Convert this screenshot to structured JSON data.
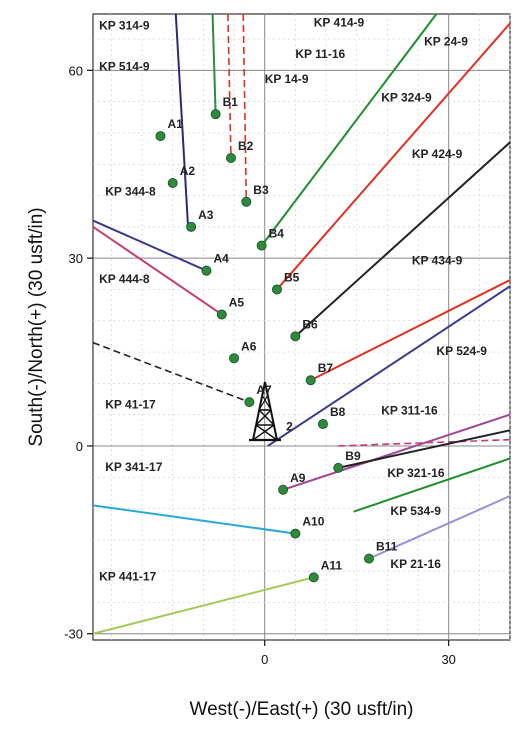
{
  "chart_data": {
    "type": "scatter",
    "title": "",
    "xlabel": "West(-)/East(+) (30 usft/in)",
    "ylabel": "South(-)/North(+) (30 usft/in)",
    "xlim": [
      -28,
      40
    ],
    "ylim": [
      -31,
      69
    ],
    "x_ticks": [
      0,
      30
    ],
    "y_ticks": [
      -30,
      0,
      30,
      60
    ],
    "grid": true,
    "wells": [
      {
        "name": "A1",
        "x": -17,
        "y": 49.5,
        "color": "#2e8b3e"
      },
      {
        "name": "A2",
        "x": -15,
        "y": 42,
        "color": "#2e8b3e"
      },
      {
        "name": "A3",
        "x": -12,
        "y": 35,
        "color": "#2e8b3e"
      },
      {
        "name": "A4",
        "x": -9.5,
        "y": 28,
        "color": "#2e8b3e"
      },
      {
        "name": "A5",
        "x": -7,
        "y": 21,
        "color": "#2e8b3e"
      },
      {
        "name": "A6",
        "x": -5,
        "y": 14,
        "color": "#2e8b3e"
      },
      {
        "name": "A7",
        "x": -2.5,
        "y": 7,
        "color": "#2e8b3e"
      },
      {
        "name": "A9",
        "x": 3,
        "y": -7,
        "color": "#2e8b3e"
      },
      {
        "name": "A10",
        "x": 5,
        "y": -14,
        "color": "#2e8b3e"
      },
      {
        "name": "A11",
        "x": 8,
        "y": -21,
        "color": "#2e8b3e"
      },
      {
        "name": "B1",
        "x": -8,
        "y": 53,
        "color": "#2e8b3e"
      },
      {
        "name": "B2",
        "x": -5.5,
        "y": 46,
        "color": "#2e8b3e"
      },
      {
        "name": "B3",
        "x": -3,
        "y": 39,
        "color": "#2e8b3e"
      },
      {
        "name": "B4",
        "x": -0.5,
        "y": 32,
        "color": "#2e8b3e"
      },
      {
        "name": "B5",
        "x": 2,
        "y": 25,
        "color": "#2e8b3e"
      },
      {
        "name": "B6",
        "x": 5,
        "y": 17.5,
        "color": "#2e8b3e"
      },
      {
        "name": "B7",
        "x": 7.5,
        "y": 10.5,
        "color": "#2e8b3e"
      },
      {
        "name": "B8",
        "x": 9.5,
        "y": 3.5,
        "color": "#2e8b3e"
      },
      {
        "name": "B9",
        "x": 12,
        "y": -3.5,
        "color": "#2e8b3e"
      },
      {
        "name": "B11",
        "x": 17,
        "y": -18,
        "color": "#2e8b3e"
      }
    ],
    "well_extra_label": {
      "name": "2",
      "x": 3.5,
      "y": 2.5
    },
    "series": [
      {
        "name": "KP 314-9",
        "x": [
          -14.5,
          -12.5
        ],
        "y": [
          69,
          35
        ],
        "color": "#2b2a72",
        "dash": false
      },
      {
        "name": "KP 514-9",
        "x": [
          -8.5,
          -8
        ],
        "y": [
          69,
          53
        ],
        "color": "#2e8b3e",
        "dash": false
      },
      {
        "name": "KP 14-9",
        "x": [
          -6,
          -5.5
        ],
        "y": [
          69,
          46
        ],
        "color": "#e03020",
        "dash": true
      },
      {
        "name": "KP 11-16",
        "x": [
          -3.5,
          -3
        ],
        "y": [
          69,
          39
        ],
        "color": "#e03020",
        "dash": true
      },
      {
        "name": "KP 414-9",
        "x": [
          -0.5,
          28
        ],
        "y": [
          32,
          69
        ],
        "color": "#1f8f2e",
        "dash": false
      },
      {
        "name": "KP 324-9",
        "x": [
          2,
          40
        ],
        "y": [
          25,
          67.5
        ],
        "color": "#e03020",
        "dash": false
      },
      {
        "name": "KP 424-9",
        "x": [
          5,
          40
        ],
        "y": [
          17.5,
          48.5
        ],
        "color": "#222222",
        "dash": false
      },
      {
        "name": "KP 524-9",
        "x": [
          0.5,
          40
        ],
        "y": [
          0,
          25.5
        ],
        "color": "#3a3a8c",
        "dash": false
      },
      {
        "name": "B7 line",
        "x": [
          7.5,
          40
        ],
        "y": [
          10.5,
          26.5
        ],
        "color": "#e03020",
        "dash": false
      },
      {
        "name": "KP 444-8",
        "x": [
          -28,
          -7
        ],
        "y": [
          35,
          21
        ],
        "color": "#c73c6a",
        "dash": false
      },
      {
        "name": "KP 344-8",
        "x": [
          -28,
          -9.5
        ],
        "y": [
          36,
          28
        ],
        "color": "#3a3a8c",
        "dash": false
      },
      {
        "name": "KP 41-17",
        "x": [
          -28,
          -2.5
        ],
        "y": [
          16.5,
          7
        ],
        "color": "#222222",
        "dash": true
      },
      {
        "name": "KP 311-16",
        "x": [
          3,
          40
        ],
        "y": [
          -7,
          5
        ],
        "color": "#a0489a",
        "dash": false
      },
      {
        "name": "B9 line",
        "x": [
          12,
          40
        ],
        "y": [
          0,
          1
        ],
        "color": "#c73c6a",
        "dash": true
      },
      {
        "name": "KP 321-16",
        "x": [
          12,
          40
        ],
        "y": [
          -3.5,
          2.5
        ],
        "color": "#222222",
        "dash": false
      },
      {
        "name": "KP 534-9",
        "x": [
          14.5,
          40
        ],
        "y": [
          -10.5,
          -2
        ],
        "color": "#1f8f2e",
        "dash": false
      },
      {
        "name": "KP 21-16",
        "x": [
          17,
          40
        ],
        "y": [
          -18,
          -8
        ],
        "color": "#9a8fd8",
        "dash": false
      },
      {
        "name": "KP 341-17",
        "x": [
          -28,
          5
        ],
        "y": [
          -9.5,
          -14
        ],
        "color": "#27a8d8",
        "dash": false
      },
      {
        "name": "KP 441-17",
        "x": [
          -28,
          8
        ],
        "y": [
          -30,
          -21
        ],
        "color": "#a3c95a",
        "dash": false
      }
    ],
    "wellpath_labels": [
      {
        "text": "KP 314-9",
        "x": -27,
        "y": 66.5
      },
      {
        "text": "KP 514-9",
        "x": -27,
        "y": 60
      },
      {
        "text": "KP 414-9",
        "x": 8,
        "y": 67
      },
      {
        "text": "KP 11-16",
        "x": 5,
        "y": 62
      },
      {
        "text": "KP 14-9",
        "x": 0,
        "y": 58
      },
      {
        "text": "KP 24-9",
        "x": 26,
        "y": 64
      },
      {
        "text": "KP 324-9",
        "x": 19,
        "y": 55
      },
      {
        "text": "KP 424-9",
        "x": 24,
        "y": 46
      },
      {
        "text": "KP 344-8",
        "x": -26,
        "y": 40
      },
      {
        "text": "KP 434-9",
        "x": 24,
        "y": 29
      },
      {
        "text": "KP 444-8",
        "x": -27,
        "y": 26
      },
      {
        "text": "KP 524-9",
        "x": 28,
        "y": 14.5
      },
      {
        "text": "KP 41-17",
        "x": -26,
        "y": 6
      },
      {
        "text": "KP 311-16",
        "x": 19,
        "y": 5
      },
      {
        "text": "KP 341-17",
        "x": -26,
        "y": -4
      },
      {
        "text": "KP 321-16",
        "x": 20,
        "y": -5
      },
      {
        "text": "KP 534-9",
        "x": 20.5,
        "y": -11
      },
      {
        "text": "KP 21-16",
        "x": 20.5,
        "y": -19.5
      },
      {
        "text": "KP 441-17",
        "x": -27,
        "y": -21.5
      }
    ]
  }
}
